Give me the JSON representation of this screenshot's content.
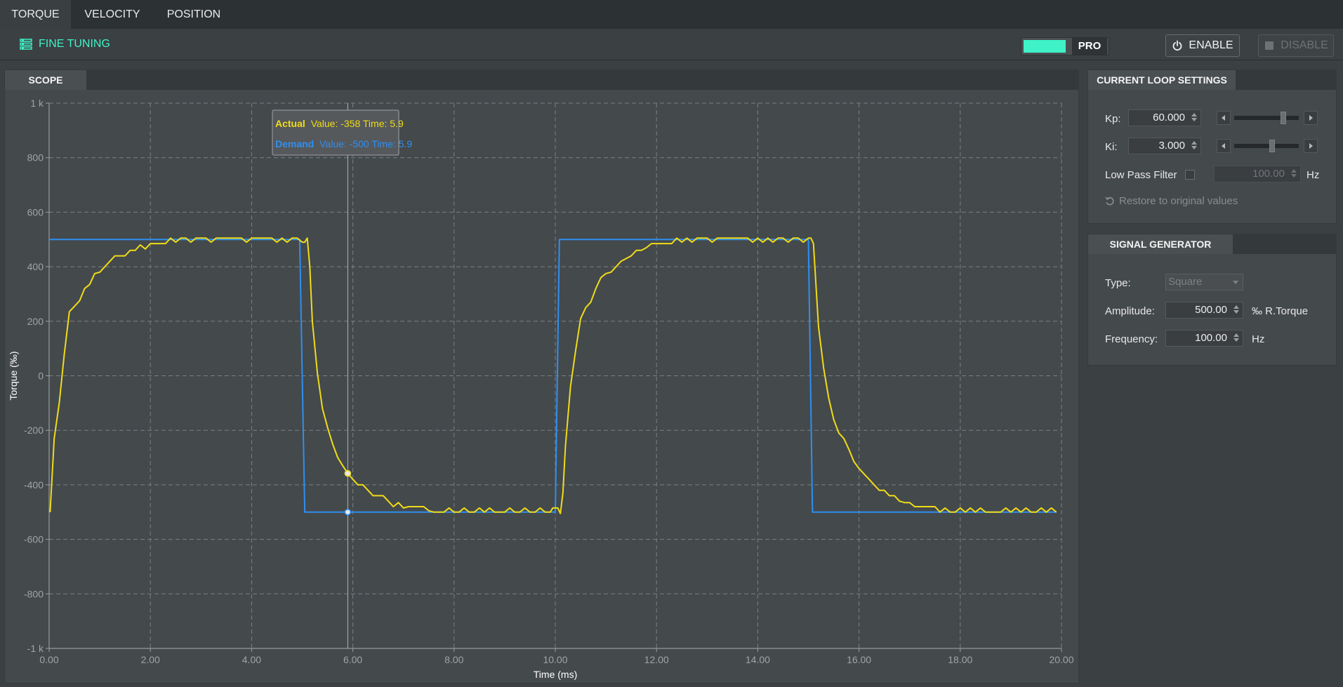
{
  "tabs": [
    {
      "label": "TORQUE",
      "active": true
    },
    {
      "label": "VELOCITY",
      "active": false
    },
    {
      "label": "POSITION",
      "active": false
    }
  ],
  "toolbar": {
    "fine_tuning_label": "FINE TUNING",
    "pro_label": "PRO",
    "enable_label": "ENABLE",
    "disable_label": "DISABLE",
    "accent_color": "#3ff2c8"
  },
  "scope": {
    "tab_label": "SCOPE",
    "tooltip": {
      "actual_name": "Actual",
      "actual_text": "Value: -358  Time: 5.9",
      "demand_name": "Demand",
      "demand_text": "Value: -500  Time: 5.9"
    }
  },
  "chart_data": {
    "type": "line",
    "xlabel": "Time (ms)",
    "ylabel": "Torque (‰)",
    "xlim": [
      0,
      20
    ],
    "ylim": [
      -1000,
      1000
    ],
    "x_ticks": [
      0,
      2,
      4,
      6,
      8,
      10,
      12,
      14,
      16,
      18,
      20
    ],
    "x_tick_labels": [
      "0.00",
      "2.00",
      "4.00",
      "6.00",
      "8.00",
      "10.00",
      "12.00",
      "14.00",
      "16.00",
      "18.00",
      "20.00"
    ],
    "y_ticks": [
      1000,
      800,
      600,
      400,
      200,
      0,
      -200,
      -400,
      -600,
      -800,
      -1000
    ],
    "y_tick_labels": [
      "1 k",
      "800",
      "600",
      "400",
      "200",
      "0",
      "-200",
      "-400",
      "-600",
      "-800",
      "-1 k"
    ],
    "grid": true,
    "cursor_time": 5.9,
    "series": [
      {
        "name": "Demand",
        "color": "#2f8ff0",
        "points": [
          [
            0,
            500
          ],
          [
            4.95,
            500
          ],
          [
            5.05,
            -500
          ],
          [
            10.0,
            -500
          ],
          [
            10.08,
            500
          ],
          [
            15.0,
            500
          ],
          [
            15.08,
            -500
          ],
          [
            19.9,
            -500
          ]
        ]
      },
      {
        "name": "Actual",
        "color": "#f0dc17",
        "points": [
          [
            0.02,
            -500
          ],
          [
            0.1,
            -230
          ],
          [
            0.2,
            -100
          ],
          [
            0.3,
            80
          ],
          [
            0.4,
            235
          ],
          [
            0.5,
            255
          ],
          [
            0.6,
            275
          ],
          [
            0.7,
            320
          ],
          [
            0.8,
            335
          ],
          [
            0.9,
            375
          ],
          [
            1.0,
            380
          ],
          [
            1.1,
            400
          ],
          [
            1.2,
            420
          ],
          [
            1.3,
            440
          ],
          [
            1.5,
            440
          ],
          [
            1.6,
            460
          ],
          [
            1.7,
            460
          ],
          [
            1.8,
            480
          ],
          [
            1.9,
            465
          ],
          [
            2.0,
            485
          ],
          [
            2.1,
            485
          ],
          [
            2.3,
            485
          ],
          [
            2.4,
            505
          ],
          [
            2.5,
            490
          ],
          [
            2.6,
            505
          ],
          [
            2.7,
            505
          ],
          [
            2.8,
            490
          ],
          [
            2.9,
            505
          ],
          [
            3.1,
            505
          ],
          [
            3.2,
            490
          ],
          [
            3.3,
            505
          ],
          [
            3.8,
            505
          ],
          [
            3.9,
            490
          ],
          [
            4.0,
            505
          ],
          [
            4.4,
            505
          ],
          [
            4.5,
            490
          ],
          [
            4.6,
            505
          ],
          [
            4.7,
            490
          ],
          [
            4.8,
            505
          ],
          [
            4.9,
            505
          ],
          [
            5.0,
            490
          ],
          [
            5.05,
            490
          ],
          [
            5.1,
            505
          ],
          [
            5.15,
            400
          ],
          [
            5.2,
            200
          ],
          [
            5.3,
            10
          ],
          [
            5.4,
            -120
          ],
          [
            5.5,
            -190
          ],
          [
            5.6,
            -250
          ],
          [
            5.7,
            -300
          ],
          [
            5.8,
            -330
          ],
          [
            5.9,
            -358
          ],
          [
            6.0,
            -380
          ],
          [
            6.1,
            -400
          ],
          [
            6.2,
            -400
          ],
          [
            6.4,
            -440
          ],
          [
            6.6,
            -440
          ],
          [
            6.7,
            -460
          ],
          [
            6.8,
            -480
          ],
          [
            6.9,
            -465
          ],
          [
            7.0,
            -485
          ],
          [
            7.1,
            -480
          ],
          [
            7.4,
            -480
          ],
          [
            7.5,
            -495
          ],
          [
            7.6,
            -500
          ],
          [
            7.8,
            -500
          ],
          [
            7.9,
            -485
          ],
          [
            8.0,
            -500
          ],
          [
            8.1,
            -500
          ],
          [
            8.2,
            -485
          ],
          [
            8.3,
            -500
          ],
          [
            8.4,
            -500
          ],
          [
            8.5,
            -485
          ],
          [
            8.6,
            -500
          ],
          [
            8.7,
            -485
          ],
          [
            8.8,
            -500
          ],
          [
            9.0,
            -500
          ],
          [
            9.1,
            -485
          ],
          [
            9.2,
            -500
          ],
          [
            9.3,
            -500
          ],
          [
            9.4,
            -485
          ],
          [
            9.5,
            -500
          ],
          [
            9.6,
            -500
          ],
          [
            9.7,
            -485
          ],
          [
            9.8,
            -500
          ],
          [
            9.9,
            -500
          ],
          [
            9.95,
            -485
          ],
          [
            10.05,
            -485
          ],
          [
            10.1,
            -505
          ],
          [
            10.15,
            -430
          ],
          [
            10.2,
            -260
          ],
          [
            10.3,
            -40
          ],
          [
            10.4,
            90
          ],
          [
            10.5,
            210
          ],
          [
            10.6,
            250
          ],
          [
            10.7,
            270
          ],
          [
            10.8,
            320
          ],
          [
            10.9,
            360
          ],
          [
            11.0,
            375
          ],
          [
            11.1,
            380
          ],
          [
            11.2,
            400
          ],
          [
            11.3,
            420
          ],
          [
            11.5,
            440
          ],
          [
            11.6,
            460
          ],
          [
            11.7,
            460
          ],
          [
            11.8,
            470
          ],
          [
            11.9,
            485
          ],
          [
            12.3,
            485
          ],
          [
            12.4,
            505
          ],
          [
            12.5,
            490
          ],
          [
            12.6,
            505
          ],
          [
            12.7,
            490
          ],
          [
            12.8,
            505
          ],
          [
            13.0,
            505
          ],
          [
            13.1,
            490
          ],
          [
            13.2,
            505
          ],
          [
            13.8,
            505
          ],
          [
            13.9,
            490
          ],
          [
            14.0,
            505
          ],
          [
            14.1,
            490
          ],
          [
            14.2,
            505
          ],
          [
            14.3,
            490
          ],
          [
            14.4,
            505
          ],
          [
            14.5,
            505
          ],
          [
            14.6,
            490
          ],
          [
            14.7,
            505
          ],
          [
            14.8,
            505
          ],
          [
            14.9,
            490
          ],
          [
            15.0,
            505
          ],
          [
            15.05,
            505
          ],
          [
            15.1,
            485
          ],
          [
            15.2,
            180
          ],
          [
            15.3,
            30
          ],
          [
            15.4,
            -80
          ],
          [
            15.5,
            -160
          ],
          [
            15.6,
            -210
          ],
          [
            15.7,
            -230
          ],
          [
            15.8,
            -270
          ],
          [
            15.9,
            -315
          ],
          [
            16.0,
            -340
          ],
          [
            16.1,
            -360
          ],
          [
            16.2,
            -380
          ],
          [
            16.3,
            -400
          ],
          [
            16.4,
            -420
          ],
          [
            16.5,
            -420
          ],
          [
            16.6,
            -440
          ],
          [
            16.7,
            -440
          ],
          [
            16.8,
            -460
          ],
          [
            16.9,
            -465
          ],
          [
            17.0,
            -465
          ],
          [
            17.1,
            -480
          ],
          [
            17.5,
            -480
          ],
          [
            17.6,
            -500
          ],
          [
            17.7,
            -485
          ],
          [
            17.8,
            -500
          ],
          [
            17.9,
            -500
          ],
          [
            18.0,
            -485
          ],
          [
            18.1,
            -500
          ],
          [
            18.2,
            -485
          ],
          [
            18.3,
            -500
          ],
          [
            18.4,
            -485
          ],
          [
            18.5,
            -500
          ],
          [
            18.8,
            -500
          ],
          [
            18.9,
            -485
          ],
          [
            19.0,
            -500
          ],
          [
            19.1,
            -485
          ],
          [
            19.2,
            -500
          ],
          [
            19.3,
            -485
          ],
          [
            19.4,
            -500
          ],
          [
            19.5,
            -500
          ],
          [
            19.6,
            -485
          ],
          [
            19.7,
            -500
          ],
          [
            19.8,
            -485
          ],
          [
            19.9,
            -500
          ]
        ]
      }
    ]
  },
  "current_loop": {
    "tab_label": "CURRENT LOOP SETTINGS",
    "kp_label": "Kp:",
    "kp_value": "60.000",
    "kp_slider": 0.78,
    "ki_label": "Ki:",
    "ki_value": "3.000",
    "ki_slider": 0.59,
    "lpf_label": "Low Pass Filter",
    "lpf_value": "100.00",
    "lpf_unit": "Hz",
    "restore_label": "Restore to original values"
  },
  "signal_generator": {
    "tab_label": "SIGNAL GENERATOR",
    "type_label": "Type:",
    "type_value": "Square",
    "amplitude_label": "Amplitude:",
    "amplitude_value": "500.00",
    "amplitude_unit": "‰ R.Torque",
    "frequency_label": "Frequency:",
    "frequency_value": "100.00",
    "frequency_unit": "Hz"
  }
}
